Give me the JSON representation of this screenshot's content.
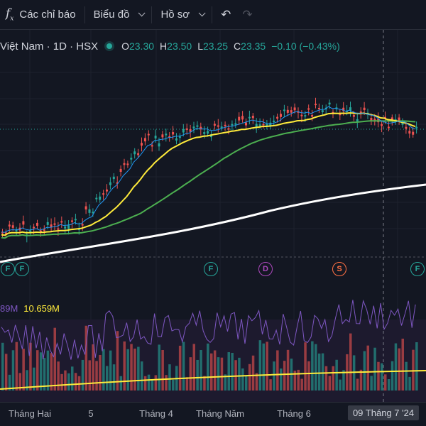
{
  "toolbar": {
    "indicators_label": "Các chỉ báo",
    "chart_label": "Biểu đồ",
    "profile_label": "Hồ sơ",
    "undo_icon": "undo-icon",
    "redo_icon": "redo-icon"
  },
  "legend": {
    "symbol": "Việt Nam · 1D · HSX",
    "open_label": "O",
    "open": "23.30",
    "high_label": "H",
    "high": "23.50",
    "low_label": "L",
    "low": "23.25",
    "close_label": "C",
    "close": "23.35",
    "change": "−0.10 (−0.43%)",
    "status_color": "#26a69a"
  },
  "volume_legend": {
    "vol": "89M",
    "ma": "10.659M"
  },
  "events": [
    {
      "label": "F",
      "color": "#26a69a"
    },
    {
      "label": "F",
      "color": "#26a69a"
    },
    {
      "label": "F",
      "color": "#26a69a"
    },
    {
      "label": "D",
      "color": "#ab47bc"
    },
    {
      "label": "S",
      "color": "#ff7043"
    },
    {
      "label": "F",
      "color": "#26a69a"
    }
  ],
  "time_axis": {
    "ticks": [
      "Tháng Hai",
      "5",
      "Tháng 4",
      "Tháng Năm",
      "Tháng 6",
      "Tháng 7"
    ],
    "crosshair_date": "09 Tháng 7 '24"
  },
  "colors": {
    "up": "#26a69a",
    "down": "#ef5350",
    "ma_fast": "#2196f3",
    "ma_mid": "#ffeb3b",
    "ma_slow": "#4caf50",
    "ma_long": "#ffffff"
  }
}
